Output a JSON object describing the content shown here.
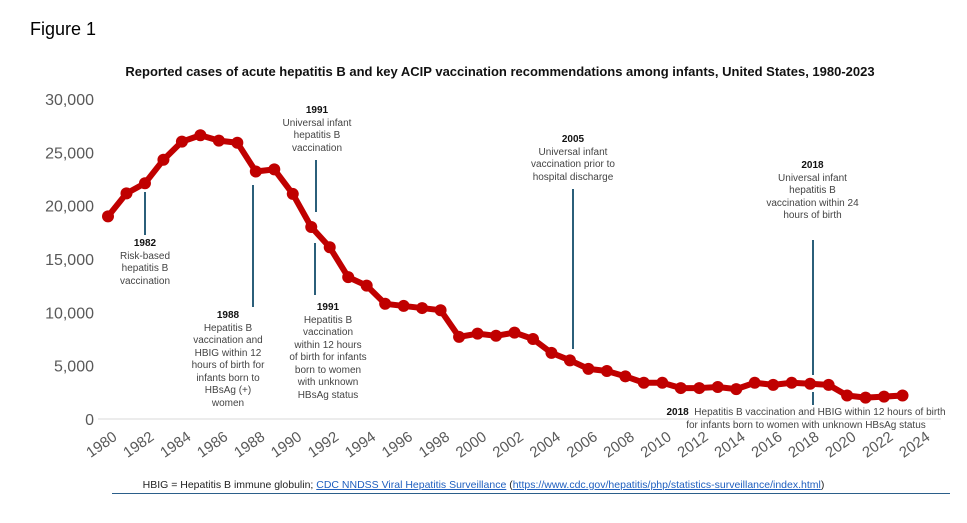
{
  "figure_label": "Figure 1",
  "chart_data": {
    "type": "line",
    "title": "Reported cases of acute hepatitis B and key ACIP vaccination recommendations among infants, United States, 1980-2023",
    "xlabel": "",
    "ylabel": "",
    "ylim": [
      0,
      30000
    ],
    "xlim": [
      1980,
      2024
    ],
    "yticks": [
      "0",
      "5,000",
      "10,000",
      "15,000",
      "20,000",
      "25,000",
      "30,000"
    ],
    "ytick_values": [
      0,
      5000,
      10000,
      15000,
      20000,
      25000,
      30000
    ],
    "xticks": [
      "1980",
      "1982",
      "1984",
      "1986",
      "1988",
      "1990",
      "1992",
      "1994",
      "1996",
      "1998",
      "2000",
      "2002",
      "2004",
      "2006",
      "2008",
      "2010",
      "2012",
      "2014",
      "2016",
      "2018",
      "2020",
      "2022",
      "2024"
    ],
    "series": [
      {
        "name": "Reported acute hepatitis B cases",
        "color": "#c00000",
        "x": [
          1980,
          1981,
          1982,
          1983,
          1984,
          1985,
          1986,
          1987,
          1988,
          1989,
          1990,
          1991,
          1992,
          1993,
          1994,
          1995,
          1996,
          1997,
          1998,
          1999,
          2000,
          2001,
          2002,
          2003,
          2004,
          2005,
          2006,
          2007,
          2008,
          2009,
          2010,
          2011,
          2012,
          2013,
          2014,
          2015,
          2016,
          2017,
          2018,
          2019,
          2020,
          2021,
          2022,
          2023
        ],
        "values": [
          19000,
          21150,
          22100,
          24300,
          26000,
          26600,
          26100,
          25900,
          23200,
          23400,
          21100,
          18000,
          16100,
          13300,
          12500,
          10800,
          10600,
          10400,
          10200,
          7700,
          8000,
          7800,
          8100,
          7500,
          6200,
          5500,
          4700,
          4500,
          4000,
          3400,
          3400,
          2900,
          2900,
          3000,
          2800,
          3400,
          3200,
          3400,
          3300,
          3200,
          2200,
          2000,
          2100,
          2200
        ]
      }
    ],
    "annotations": [
      {
        "year": "1982",
        "text": "Risk-based hepatitis B vaccination"
      },
      {
        "year": "1988",
        "text": "Hepatitis B vaccination and HBIG within 12 hours of birth for infants born to HBsAg (+) women"
      },
      {
        "year": "1991",
        "text": "Universal infant hepatitis B vaccination"
      },
      {
        "year": "1991",
        "text": "Hepatitis B vaccination within 12 hours of birth for infants born to women with unknown HBsAg status"
      },
      {
        "year": "2005",
        "text": "Universal infant vaccination prior to hospital discharge"
      },
      {
        "year": "2018",
        "text": "Universal infant hepatitis B vaccination within 24 hours of birth"
      },
      {
        "year": "2018",
        "text": "Hepatitis B vaccination and HBIG within 12 hours of birth for infants born to women with unknown HBsAg status"
      }
    ],
    "line_color": "#c00000",
    "marker_color": "#c00000",
    "annotation_line_color": "#2b5f7a"
  },
  "footer": {
    "prefix": "HBIG = Hepatitis B immune globulin; ",
    "link_text": "CDC NNDSS Viral Hepatitis Surveillance",
    "url_open": " (",
    "url": "https://www.cdc.gov/hepatitis/php/statistics-surveillance/index.html",
    "url_close": ")"
  }
}
